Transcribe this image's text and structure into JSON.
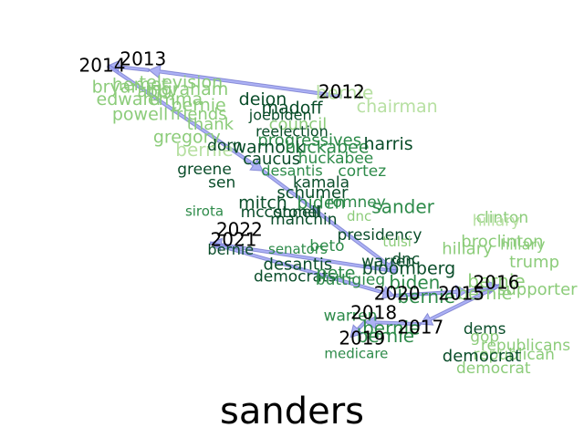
{
  "title": "sanders",
  "colors": {
    "arrow_fill": "#9ea3f2",
    "arrow_stroke": "#5a5fc0",
    "year_text": "#000000",
    "dark_green": "#0a4d2a",
    "mid_green": "#2e8b4a",
    "light_green": "#8ccc7a",
    "pale_green": "#b7e0a2"
  },
  "years": [
    {
      "label": "2013",
      "at": [
        0.245,
        0.138
      ]
    },
    {
      "label": "2014",
      "at": [
        0.175,
        0.152
      ]
    },
    {
      "label": "2012",
      "at": [
        0.585,
        0.213
      ]
    },
    {
      "label": "2022",
      "at": [
        0.41,
        0.527
      ]
    },
    {
      "label": "2021",
      "at": [
        0.4,
        0.55
      ]
    },
    {
      "label": "2020",
      "at": [
        0.68,
        0.673
      ]
    },
    {
      "label": "2015",
      "at": [
        0.79,
        0.673
      ]
    },
    {
      "label": "2016",
      "at": [
        0.85,
        0.648
      ]
    },
    {
      "label": "2018",
      "at": [
        0.64,
        0.717
      ]
    },
    {
      "label": "2017",
      "at": [
        0.72,
        0.75
      ]
    },
    {
      "label": "2019",
      "at": [
        0.62,
        0.775
      ]
    }
  ],
  "words": [
    {
      "text": "television",
      "at": [
        0.31,
        0.19
      ],
      "tone": "light",
      "size": 19
    },
    {
      "text": "bryan",
      "at": [
        0.2,
        0.2
      ],
      "tone": "light",
      "size": 19
    },
    {
      "text": "hemet",
      "at": [
        0.24,
        0.195
      ],
      "tone": "light",
      "size": 19
    },
    {
      "text": "ingraham",
      "at": [
        0.32,
        0.205
      ],
      "tone": "light",
      "size": 19
    },
    {
      "text": "abby",
      "at": [
        0.27,
        0.21
      ],
      "tone": "light",
      "size": 18
    },
    {
      "text": "edward",
      "at": [
        0.22,
        0.228
      ],
      "tone": "light",
      "size": 19
    },
    {
      "text": "emma",
      "at": [
        0.3,
        0.228
      ],
      "tone": "light",
      "size": 19
    },
    {
      "text": "bernie",
      "at": [
        0.34,
        0.242
      ],
      "tone": "light",
      "size": 19
    },
    {
      "text": "powell",
      "at": [
        0.24,
        0.262
      ],
      "tone": "light",
      "size": 19
    },
    {
      "text": "friends",
      "at": [
        0.34,
        0.262
      ],
      "tone": "light",
      "size": 18
    },
    {
      "text": "thank",
      "at": [
        0.36,
        0.285
      ],
      "tone": "light",
      "size": 18
    },
    {
      "text": "council",
      "at": [
        0.51,
        0.285
      ],
      "tone": "light",
      "size": 18
    },
    {
      "text": "gregory",
      "at": [
        0.32,
        0.315
      ],
      "tone": "light",
      "size": 19
    },
    {
      "text": "bernie",
      "at": [
        0.35,
        0.345
      ],
      "tone": "pale",
      "size": 20
    },
    {
      "text": "chairman",
      "at": [
        0.68,
        0.245
      ],
      "tone": "pale",
      "size": 19
    },
    {
      "text": "bernie",
      "at": [
        0.59,
        0.215
      ],
      "tone": "pale",
      "size": 20
    },
    {
      "text": "deion",
      "at": [
        0.45,
        0.228
      ],
      "tone": "dark",
      "size": 19
    },
    {
      "text": "madoff",
      "at": [
        0.5,
        0.248
      ],
      "tone": "dark",
      "size": 19
    },
    {
      "text": "joebiden",
      "at": [
        0.48,
        0.265
      ],
      "tone": "dark",
      "size": 16
    },
    {
      "text": "reelection",
      "at": [
        0.5,
        0.302
      ],
      "tone": "dark",
      "size": 16
    },
    {
      "text": "progressives",
      "at": [
        0.53,
        0.322
      ],
      "tone": "mid",
      "size": 18
    },
    {
      "text": "dorn",
      "at": [
        0.385,
        0.333
      ],
      "tone": "dark",
      "size": 17
    },
    {
      "text": "warnock",
      "at": [
        0.46,
        0.338
      ],
      "tone": "dark",
      "size": 19
    },
    {
      "text": "huckabee",
      "at": [
        0.56,
        0.338
      ],
      "tone": "mid",
      "size": 19
    },
    {
      "text": "harris",
      "at": [
        0.665,
        0.33
      ],
      "tone": "dark",
      "size": 19
    },
    {
      "text": "caucus",
      "at": [
        0.465,
        0.365
      ],
      "tone": "dark",
      "size": 18
    },
    {
      "text": "huckabee",
      "at": [
        0.575,
        0.362
      ],
      "tone": "mid",
      "size": 17
    },
    {
      "text": "greene",
      "at": [
        0.35,
        0.388
      ],
      "tone": "dark",
      "size": 17
    },
    {
      "text": "desantis",
      "at": [
        0.5,
        0.392
      ],
      "tone": "mid",
      "size": 16
    },
    {
      "text": "cortez",
      "at": [
        0.62,
        0.392
      ],
      "tone": "mid",
      "size": 17
    },
    {
      "text": "sen",
      "at": [
        0.38,
        0.418
      ],
      "tone": "dark",
      "size": 17
    },
    {
      "text": "kamala",
      "at": [
        0.55,
        0.418
      ],
      "tone": "dark",
      "size": 17
    },
    {
      "text": "schumer",
      "at": [
        0.535,
        0.442
      ],
      "tone": "dark",
      "size": 18
    },
    {
      "text": "mitch",
      "at": [
        0.45,
        0.465
      ],
      "tone": "dark",
      "size": 19
    },
    {
      "text": "biden",
      "at": [
        0.55,
        0.465
      ],
      "tone": "mid",
      "size": 19
    },
    {
      "text": "romney",
      "at": [
        0.61,
        0.463
      ],
      "tone": "mid",
      "size": 17
    },
    {
      "text": "sander",
      "at": [
        0.69,
        0.475
      ],
      "tone": "mid",
      "size": 20
    },
    {
      "text": "sirota",
      "at": [
        0.35,
        0.483
      ],
      "tone": "mid",
      "size": 15
    },
    {
      "text": "mcconnell",
      "at": [
        0.48,
        0.485
      ],
      "tone": "dark",
      "size": 17
    },
    {
      "text": "stonel",
      "at": [
        0.51,
        0.485
      ],
      "tone": "dark",
      "size": 17
    },
    {
      "text": "dnc",
      "at": [
        0.615,
        0.495
      ],
      "tone": "light",
      "size": 15
    },
    {
      "text": "manchin",
      "at": [
        0.52,
        0.502
      ],
      "tone": "dark",
      "size": 17
    },
    {
      "text": "presidency",
      "at": [
        0.65,
        0.537
      ],
      "tone": "dark",
      "size": 17
    },
    {
      "text": "tulsi",
      "at": [
        0.68,
        0.553
      ],
      "tone": "light",
      "size": 15
    },
    {
      "text": "beto",
      "at": [
        0.56,
        0.563
      ],
      "tone": "mid",
      "size": 17
    },
    {
      "text": "senators",
      "at": [
        0.51,
        0.57
      ],
      "tone": "mid",
      "size": 15
    },
    {
      "text": "bernie",
      "at": [
        0.395,
        0.572
      ],
      "tone": "dark",
      "size": 16
    },
    {
      "text": "desantis",
      "at": [
        0.51,
        0.605
      ],
      "tone": "dark",
      "size": 18
    },
    {
      "text": "warren",
      "at": [
        0.665,
        0.598
      ],
      "tone": "dark",
      "size": 17
    },
    {
      "text": "dnc",
      "at": [
        0.695,
        0.593
      ],
      "tone": "dark",
      "size": 17
    },
    {
      "text": "bloomberg",
      "at": [
        0.7,
        0.615
      ],
      "tone": "dark",
      "size": 19
    },
    {
      "text": "democrats",
      "at": [
        0.505,
        0.632
      ],
      "tone": "dark",
      "size": 17
    },
    {
      "text": "pete",
      "at": [
        0.575,
        0.625
      ],
      "tone": "mid",
      "size": 19
    },
    {
      "text": "buttigieg",
      "at": [
        0.6,
        0.64
      ],
      "tone": "mid",
      "size": 17
    },
    {
      "text": "biden",
      "at": [
        0.71,
        0.648
      ],
      "tone": "mid",
      "size": 20
    },
    {
      "text": "bernie",
      "at": [
        0.73,
        0.68
      ],
      "tone": "mid",
      "size": 20
    },
    {
      "text": "clinton",
      "at": [
        0.86,
        0.498
      ],
      "tone": "light",
      "size": 17
    },
    {
      "text": "hillary",
      "at": [
        0.85,
        0.505
      ],
      "tone": "pale",
      "size": 17
    },
    {
      "text": "broclinton",
      "at": [
        0.86,
        0.553
      ],
      "tone": "light",
      "size": 18
    },
    {
      "text": "hillary",
      "at": [
        0.8,
        0.57
      ],
      "tone": "light",
      "size": 18
    },
    {
      "text": "hillary",
      "at": [
        0.895,
        0.56
      ],
      "tone": "light",
      "size": 16
    },
    {
      "text": "trump",
      "at": [
        0.915,
        0.6
      ],
      "tone": "light",
      "size": 18
    },
    {
      "text": "bernie",
      "at": [
        0.85,
        0.645
      ],
      "tone": "light",
      "size": 20
    },
    {
      "text": "supporter",
      "at": [
        0.92,
        0.662
      ],
      "tone": "light",
      "size": 18
    },
    {
      "text": "bernie",
      "at": [
        0.83,
        0.672
      ],
      "tone": "light",
      "size": 19
    },
    {
      "text": "warren",
      "at": [
        0.6,
        0.722
      ],
      "tone": "mid",
      "size": 17
    },
    {
      "text": "bernie",
      "at": [
        0.67,
        0.752
      ],
      "tone": "mid",
      "size": 20
    },
    {
      "text": "bernie",
      "at": [
        0.66,
        0.77
      ],
      "tone": "mid",
      "size": 20
    },
    {
      "text": "dems",
      "at": [
        0.83,
        0.752
      ],
      "tone": "dark",
      "size": 17
    },
    {
      "text": "gop",
      "at": [
        0.83,
        0.77
      ],
      "tone": "light",
      "size": 17
    },
    {
      "text": "republicans",
      "at": [
        0.9,
        0.79
      ],
      "tone": "light",
      "size": 17
    },
    {
      "text": "republican",
      "at": [
        0.88,
        0.81
      ],
      "tone": "light",
      "size": 17
    },
    {
      "text": "democrat",
      "at": [
        0.825,
        0.815
      ],
      "tone": "dark",
      "size": 18
    },
    {
      "text": "democrat",
      "at": [
        0.845,
        0.842
      ],
      "tone": "light",
      "size": 17
    },
    {
      "text": "medicare",
      "at": [
        0.61,
        0.808
      ],
      "tone": "mid",
      "size": 15
    }
  ],
  "path": [
    [
      0.585,
      0.22
    ],
    [
      0.255,
      0.16
    ],
    [
      0.185,
      0.15
    ],
    [
      0.45,
      0.39
    ],
    [
      0.68,
      0.62
    ],
    [
      0.36,
      0.555
    ],
    [
      0.675,
      0.675
    ],
    [
      0.8,
      0.665
    ],
    [
      0.855,
      0.652
    ],
    [
      0.72,
      0.74
    ],
    [
      0.625,
      0.735
    ],
    [
      0.6,
      0.77
    ]
  ]
}
